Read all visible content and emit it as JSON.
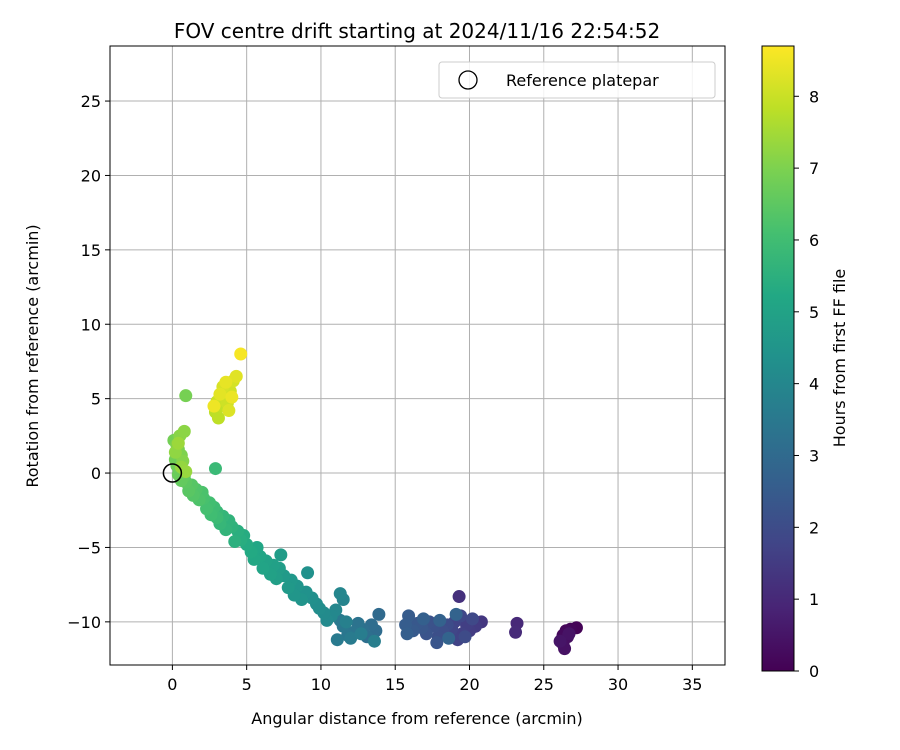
{
  "chart_data": {
    "type": "scatter",
    "title": "FOV centre drift starting at 2024/11/16 22:54:52",
    "xlabel": "Angular distance from reference (arcmin)",
    "ylabel": "Rotation from reference (arcmin)",
    "xlim": [
      -4.2,
      37.2
    ],
    "ylim": [
      -12.9,
      28.7
    ],
    "xticks": [
      0,
      5,
      10,
      15,
      20,
      25,
      30,
      35
    ],
    "yticks": [
      -10,
      -5,
      0,
      5,
      10,
      15,
      20,
      25
    ],
    "xtick_labels": [
      "0",
      "5",
      "10",
      "15",
      "20",
      "25",
      "30",
      "35"
    ],
    "ytick_labels": [
      "−10",
      "−5",
      "0",
      "5",
      "10",
      "15",
      "20",
      "25"
    ],
    "grid": true,
    "legend": {
      "placement": "upper right",
      "entries": [
        "Reference platepar"
      ]
    },
    "colorbar": {
      "label": "Hours from first FF file",
      "min": 0,
      "max": 8.7,
      "ticks": [
        0,
        1,
        2,
        3,
        4,
        5,
        6,
        7,
        8
      ],
      "tick_labels": [
        "0",
        "1",
        "2",
        "3",
        "4",
        "5",
        "6",
        "7",
        "8"
      ],
      "colormap": "viridis",
      "colormap_stops": [
        "#440154",
        "#482475",
        "#414487",
        "#355f8d",
        "#2a788e",
        "#21918c",
        "#22a884",
        "#44bf70",
        "#7ad151",
        "#bddf26",
        "#fde725"
      ]
    },
    "reference_point": {
      "x": 0,
      "y": 0,
      "name": "Reference platepar"
    },
    "series": [
      {
        "columns": [
          "x",
          "y",
          "hours"
        ],
        "points": [
          [
            27.2,
            -10.4,
            0.05
          ],
          [
            26.8,
            -10.5,
            0.1
          ],
          [
            26.5,
            -10.6,
            0.15
          ],
          [
            26.3,
            -10.9,
            0.2
          ],
          [
            26.2,
            -11.2,
            0.25
          ],
          [
            26.3,
            -11.5,
            0.3
          ],
          [
            26.6,
            -11.0,
            0.35
          ],
          [
            26.4,
            -11.8,
            0.4
          ],
          [
            26.7,
            -10.8,
            0.45
          ],
          [
            26.1,
            -11.3,
            0.5
          ],
          [
            23.2,
            -10.1,
            1.0
          ],
          [
            23.1,
            -10.7,
            1.05
          ],
          [
            19.3,
            -8.3,
            1.2
          ],
          [
            20.8,
            -10.0,
            1.4
          ],
          [
            20.4,
            -10.3,
            1.5
          ],
          [
            20.0,
            -10.6,
            1.55
          ],
          [
            19.8,
            -10.2,
            1.6
          ],
          [
            19.5,
            -10.8,
            1.65
          ],
          [
            19.2,
            -11.2,
            1.7
          ],
          [
            19.0,
            -10.0,
            1.75
          ],
          [
            18.8,
            -10.5,
            1.8
          ],
          [
            19.4,
            -9.6,
            1.85
          ],
          [
            20.2,
            -9.8,
            1.9
          ],
          [
            19.7,
            -11.0,
            1.95
          ],
          [
            18.5,
            -10.2,
            2.0
          ],
          [
            18.2,
            -10.6,
            2.05
          ],
          [
            17.9,
            -11.0,
            2.1
          ],
          [
            17.6,
            -10.3,
            2.15
          ],
          [
            17.3,
            -10.0,
            2.2
          ],
          [
            17.1,
            -10.8,
            2.25
          ],
          [
            17.8,
            -11.4,
            2.3
          ],
          [
            16.8,
            -10.4,
            2.35
          ],
          [
            16.5,
            -10.1,
            2.4
          ],
          [
            16.2,
            -10.6,
            2.45
          ],
          [
            15.9,
            -9.6,
            2.5
          ],
          [
            15.7,
            -10.2,
            2.55
          ],
          [
            15.8,
            -10.8,
            2.6
          ],
          [
            16.9,
            -9.8,
            2.65
          ],
          [
            18.0,
            -9.9,
            2.7
          ],
          [
            19.1,
            -9.5,
            2.75
          ],
          [
            18.6,
            -11.1,
            2.8
          ],
          [
            13.9,
            -9.5,
            3.0
          ],
          [
            13.7,
            -10.6,
            3.05
          ],
          [
            13.4,
            -10.2,
            3.1
          ],
          [
            13.1,
            -11.0,
            3.15
          ],
          [
            12.8,
            -10.5,
            3.2
          ],
          [
            12.5,
            -10.1,
            3.3
          ],
          [
            12.2,
            -10.7,
            3.35
          ],
          [
            11.8,
            -10.9,
            3.4
          ],
          [
            11.5,
            -10.3,
            3.45
          ],
          [
            11.3,
            -9.9,
            3.5
          ],
          [
            11.1,
            -11.2,
            3.55
          ],
          [
            12.0,
            -11.1,
            3.6
          ],
          [
            12.7,
            -10.8,
            3.65
          ],
          [
            13.6,
            -11.3,
            3.7
          ],
          [
            11.7,
            -10.0,
            3.75
          ],
          [
            11.5,
            -8.5,
            3.9
          ],
          [
            11.3,
            -8.1,
            3.95
          ],
          [
            11.0,
            -9.2,
            4.0
          ],
          [
            10.7,
            -9.6,
            4.05
          ],
          [
            10.4,
            -9.9,
            4.1
          ],
          [
            10.2,
            -9.4,
            4.15
          ],
          [
            9.9,
            -9.1,
            4.2
          ],
          [
            9.7,
            -8.8,
            4.25
          ],
          [
            9.4,
            -8.4,
            4.3
          ],
          [
            9.1,
            -6.7,
            4.35
          ],
          [
            9.0,
            -8.0,
            4.4
          ],
          [
            8.7,
            -8.5,
            4.45
          ],
          [
            8.4,
            -7.6,
            4.5
          ],
          [
            8.2,
            -8.2,
            4.55
          ],
          [
            8.0,
            -7.2,
            4.6
          ],
          [
            7.8,
            -7.7,
            4.65
          ],
          [
            7.5,
            -6.9,
            4.7
          ],
          [
            7.3,
            -5.5,
            4.75
          ],
          [
            7.2,
            -6.4,
            4.8
          ],
          [
            7.0,
            -7.1,
            4.85
          ],
          [
            6.8,
            -6.2,
            4.9
          ],
          [
            6.6,
            -6.8,
            4.95
          ],
          [
            6.3,
            -5.9,
            5.0
          ],
          [
            6.1,
            -6.4,
            5.05
          ],
          [
            5.9,
            -5.6,
            5.1
          ],
          [
            5.7,
            -5.0,
            5.15
          ],
          [
            5.5,
            -5.8,
            5.2
          ],
          [
            5.3,
            -5.3,
            5.25
          ],
          [
            5.0,
            -4.8,
            5.3
          ],
          [
            4.8,
            -4.2,
            5.35
          ],
          [
            4.6,
            -4.5,
            5.4
          ],
          [
            4.4,
            -3.9,
            5.45
          ],
          [
            4.2,
            -4.6,
            5.5
          ],
          [
            4.0,
            -3.6,
            5.55
          ],
          [
            3.8,
            -3.2,
            5.6
          ],
          [
            3.6,
            -3.8,
            5.65
          ],
          [
            3.4,
            -2.9,
            5.7
          ],
          [
            3.2,
            -3.4,
            5.75
          ],
          [
            3.0,
            -2.6,
            5.8
          ],
          [
            2.9,
            0.3,
            5.85
          ],
          [
            3.0,
            -3.0,
            5.9
          ],
          [
            2.8,
            -2.3,
            5.95
          ],
          [
            2.6,
            -2.8,
            6.0
          ],
          [
            2.5,
            -2.0,
            6.05
          ],
          [
            2.3,
            -2.4,
            6.1
          ],
          [
            2.1,
            -1.7,
            6.15
          ],
          [
            2.0,
            -1.3,
            6.2
          ],
          [
            1.8,
            -1.8,
            6.25
          ],
          [
            1.6,
            -1.1,
            6.3
          ],
          [
            1.4,
            -1.5,
            6.35
          ],
          [
            1.3,
            -0.8,
            6.4
          ],
          [
            1.1,
            -1.2,
            6.45
          ],
          [
            0.9,
            -0.6,
            6.5
          ],
          [
            0.8,
            -0.2,
            6.55
          ],
          [
            0.6,
            -0.5,
            6.6
          ],
          [
            0.5,
            0.2,
            6.65
          ],
          [
            0.4,
            -0.1,
            6.7
          ],
          [
            0.3,
            0.5,
            6.75
          ],
          [
            0.2,
            0.9,
            6.8
          ],
          [
            0.1,
            2.2,
            6.85
          ],
          [
            0.9,
            5.2,
            6.9
          ],
          [
            0.4,
            1.6,
            6.95
          ],
          [
            0.6,
            1.2,
            7.0
          ],
          [
            0.3,
            1.9,
            7.05
          ],
          [
            0.7,
            0.8,
            7.1
          ],
          [
            0.5,
            2.5,
            7.15
          ],
          [
            0.8,
            2.8,
            7.2
          ],
          [
            0.2,
            1.4,
            7.25
          ],
          [
            0.6,
            0.4,
            7.3
          ],
          [
            0.9,
            0.1,
            7.35
          ],
          [
            0.4,
            2.0,
            7.4
          ],
          [
            2.9,
            4.1,
            7.8
          ],
          [
            3.1,
            3.7,
            7.85
          ],
          [
            3.3,
            4.5,
            7.9
          ],
          [
            3.5,
            5.0,
            7.95
          ],
          [
            3.0,
            4.8,
            8.0
          ],
          [
            3.7,
            4.7,
            8.05
          ],
          [
            3.9,
            5.5,
            8.1
          ],
          [
            4.1,
            6.2,
            8.15
          ],
          [
            3.4,
            5.8,
            8.2
          ],
          [
            3.8,
            4.2,
            8.25
          ],
          [
            4.3,
            6.5,
            8.3
          ],
          [
            3.2,
            5.3,
            8.35
          ],
          [
            3.6,
            6.1,
            8.4
          ],
          [
            4.0,
            5.1,
            8.45
          ],
          [
            2.8,
            4.5,
            8.5
          ],
          [
            4.6,
            8.0,
            8.6
          ]
        ]
      }
    ]
  }
}
